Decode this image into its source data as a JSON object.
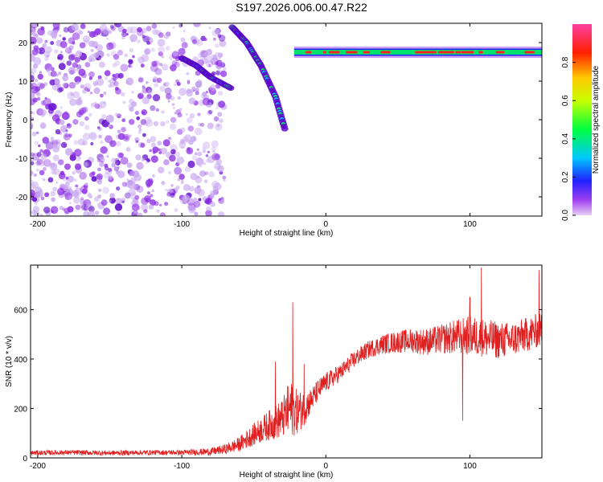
{
  "title": "S197.2026.006.00.47.R22",
  "colors": {
    "axis": "#000000",
    "snr_line": "#e02020",
    "spectro_weak": "#c9a9f0",
    "spectro_mid": "#8a2be2",
    "spectro_strong": "#5a00c8"
  },
  "chart_data": [
    {
      "type": "heatmap",
      "xlabel": "Height of straight line (km)",
      "ylabel": "Frequency (Hz)",
      "xlim": [
        -205,
        150
      ],
      "ylim": [
        -25,
        25
      ],
      "xticks": [
        -200,
        -100,
        0,
        100
      ],
      "yticks": [
        -20,
        -10,
        0,
        10,
        20
      ],
      "colorbar": {
        "label": "Normalized spectral amplitude",
        "range": [
          0,
          1
        ],
        "ticks": [
          "0.0",
          "0.2",
          "0.4",
          "0.6",
          "0.8"
        ],
        "colormap": "hsv-rainbow (purple low, red high)"
      },
      "features": [
        {
          "name": "diffuse noise region",
          "x_range": [
            -205,
            -70
          ],
          "freq_range": [
            -25,
            25
          ],
          "amplitude": 0.1
        },
        {
          "name": "descending track A",
          "points": [
            [
              -100,
              16
            ],
            [
              -90,
              14
            ],
            [
              -80,
              11
            ],
            [
              -65,
              8
            ]
          ],
          "amplitude": 0.35
        },
        {
          "name": "descending track B",
          "points": [
            [
              -65,
              24
            ],
            [
              -55,
              20
            ],
            [
              -45,
              14
            ],
            [
              -35,
              6
            ],
            [
              -28,
              -3
            ]
          ],
          "amplitude": 0.3
        },
        {
          "name": "steady tone",
          "x_range": [
            -22,
            150
          ],
          "freq": 17.5,
          "amplitude": 0.9
        }
      ]
    },
    {
      "type": "line",
      "xlabel": "Height of straight line (km)",
      "ylabel": "SNR (10 * v/v)",
      "xlim": [
        -205,
        150
      ],
      "ylim": [
        0,
        780
      ],
      "xticks": [
        -200,
        -100,
        0,
        100
      ],
      "yticks": [
        0,
        200,
        400,
        600
      ],
      "series": [
        {
          "x": [
            -205,
            -180,
            -150,
            -120,
            -100,
            -80,
            -70,
            -60,
            -50,
            -40,
            -30,
            -25,
            -20,
            -15,
            -10,
            -5,
            0,
            10,
            20,
            30,
            40,
            50,
            60,
            70,
            80,
            90,
            100,
            110,
            120,
            130,
            140,
            150
          ],
          "y": [
            20,
            22,
            20,
            22,
            22,
            25,
            35,
            55,
            95,
            130,
            160,
            200,
            185,
            200,
            235,
            275,
            305,
            345,
            400,
            440,
            460,
            470,
            475,
            470,
            480,
            490,
            495,
            485,
            475,
            480,
            500,
            520
          ],
          "noise_amplitude": [
            10,
            10,
            10,
            10,
            10,
            15,
            20,
            30,
            45,
            60,
            80,
            120,
            90,
            70,
            50,
            45,
            40,
            35,
            35,
            35,
            40,
            45,
            50,
            55,
            60,
            70,
            80,
            80,
            75,
            70,
            70,
            70
          ],
          "peaks": [
            [
              -23,
              630
            ],
            [
              -35,
              390
            ],
            [
              -15,
              380
            ],
            [
              108,
              770
            ],
            [
              148,
              760
            ],
            [
              100,
              650
            ],
            [
              95,
              150
            ]
          ]
        }
      ]
    }
  ]
}
